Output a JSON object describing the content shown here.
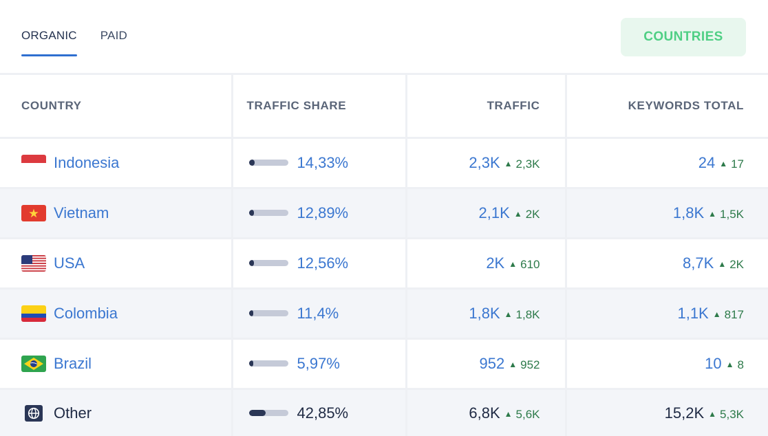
{
  "tabs": [
    {
      "label": "ORGANIC",
      "active": true
    },
    {
      "label": "PAID",
      "active": false
    }
  ],
  "countries_button": "COUNTRIES",
  "table": {
    "headers": {
      "country": "COUNTRY",
      "traffic_share": "TRAFFIC SHARE",
      "traffic": "TRAFFIC",
      "keywords_total": "KEYWORDS TOTAL"
    },
    "rows": [
      {
        "country": "Indonesia",
        "flag": "flag-indonesia-icon",
        "share": "14,33%",
        "share_fraction": 0.1433,
        "traffic": "2,3K",
        "traffic_delta": "2,3K",
        "keywords": "24",
        "keywords_delta": "17"
      },
      {
        "country": "Vietnam",
        "flag": "flag-vietnam-icon",
        "share": "12,89%",
        "share_fraction": 0.1289,
        "traffic": "2,1K",
        "traffic_delta": "2K",
        "keywords": "1,8K",
        "keywords_delta": "1,5K"
      },
      {
        "country": "USA",
        "flag": "flag-usa-icon",
        "share": "12,56%",
        "share_fraction": 0.1256,
        "traffic": "2K",
        "traffic_delta": "610",
        "keywords": "8,7K",
        "keywords_delta": "2K"
      },
      {
        "country": "Colombia",
        "flag": "flag-colombia-icon",
        "share": "11,4%",
        "share_fraction": 0.114,
        "traffic": "1,8K",
        "traffic_delta": "1,8K",
        "keywords": "1,1K",
        "keywords_delta": "817"
      },
      {
        "country": "Brazil",
        "flag": "flag-brazil-icon",
        "share": "5,97%",
        "share_fraction": 0.0597,
        "traffic": "952",
        "traffic_delta": "952",
        "keywords": "10",
        "keywords_delta": "8"
      },
      {
        "country": "Other",
        "flag": "globe-icon",
        "share": "42,85%",
        "share_fraction": 0.4285,
        "traffic": "6,8K",
        "traffic_delta": "5,6K",
        "keywords": "15,2K",
        "keywords_delta": "5,3K"
      }
    ]
  },
  "colors": {
    "link": "#3b77d0",
    "accent_tab": "#2f6fd0",
    "button_bg": "#e8f7ee",
    "button_text": "#4fcf84",
    "delta_green": "#2d7a4a",
    "bar_fill": "#2a3656",
    "bar_track": "#c5cad8"
  }
}
